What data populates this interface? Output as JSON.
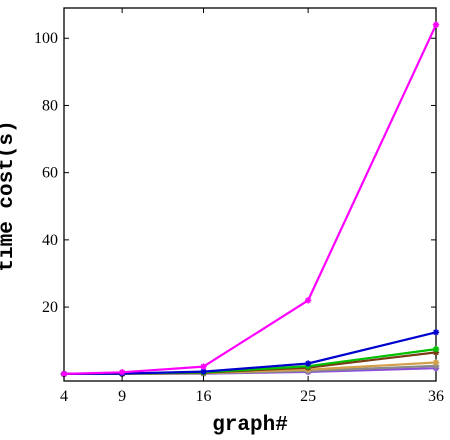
{
  "chart_data": {
    "type": "line",
    "title": "",
    "xlabel": "graph#",
    "ylabel": "time cost(s)",
    "x": [
      4,
      9,
      16,
      25,
      36
    ],
    "x_tick_labels": [
      "4",
      "9",
      "16",
      "25",
      "36"
    ],
    "xlim": [
      4,
      36
    ],
    "ylim": [
      -2,
      109
    ],
    "y_ticks": [
      20,
      40,
      60,
      80,
      100
    ],
    "y_tick_labels": [
      "20",
      "40",
      "60",
      "80",
      "100"
    ],
    "grid": false,
    "legend": "none",
    "series": [
      {
        "color": "#ff00ff",
        "marker": "asterisk",
        "values": [
          0.1,
          0.6,
          2.3,
          22.0,
          104.0
        ]
      },
      {
        "color": "#0000cd",
        "marker": "asterisk",
        "values": [
          0.1,
          0.2,
          0.8,
          3.2,
          12.5
        ]
      },
      {
        "color": "#00c000",
        "marker": "asterisk",
        "values": [
          0.1,
          0.2,
          0.6,
          2.4,
          7.5
        ]
      },
      {
        "color": "#7a3b14",
        "marker": "asterisk",
        "values": [
          0.1,
          0.2,
          0.5,
          2.0,
          6.5
        ]
      },
      {
        "color": "#d2a04a",
        "marker": "asterisk",
        "values": [
          0.1,
          0.1,
          0.4,
          1.4,
          3.5
        ]
      },
      {
        "color": "#8a8a8a",
        "marker": "asterisk",
        "values": [
          0.1,
          0.1,
          0.3,
          1.0,
          2.5
        ]
      },
      {
        "color": "#8a4fd6",
        "marker": "asterisk",
        "values": [
          0.1,
          0.1,
          0.2,
          0.7,
          1.8
        ]
      }
    ]
  }
}
